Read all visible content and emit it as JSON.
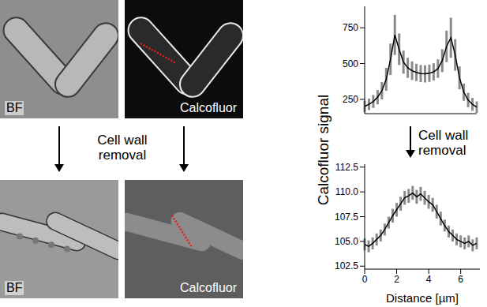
{
  "figure": {
    "panels": [
      {
        "label": "BF"
      },
      {
        "label": "Calcofluor"
      },
      {
        "label": "BF"
      },
      {
        "label": "Calcofluor"
      }
    ],
    "arrow_labels": [
      "Cell wall removal",
      "Cell wall removal"
    ],
    "y_label": "Calcofluor signal"
  },
  "chart_data": [
    {
      "type": "line",
      "x": [
        0,
        0.25,
        0.5,
        0.75,
        1.0,
        1.25,
        1.5,
        1.75,
        2.0,
        2.25,
        2.5,
        2.75,
        3.0,
        3.25,
        3.5,
        3.75,
        4.0,
        4.25,
        4.5,
        4.75,
        5.0,
        5.25,
        5.5,
        5.75,
        6.0,
        6.25,
        6.5
      ],
      "values": [
        200,
        215,
        235,
        265,
        310,
        390,
        530,
        700,
        600,
        510,
        470,
        450,
        438,
        430,
        428,
        432,
        442,
        465,
        520,
        620,
        680,
        560,
        400,
        300,
        245,
        215,
        195
      ],
      "error": [
        40,
        40,
        45,
        50,
        60,
        80,
        110,
        140,
        110,
        80,
        70,
        65,
        60,
        60,
        60,
        60,
        60,
        65,
        80,
        110,
        140,
        110,
        80,
        60,
        50,
        45,
        40
      ],
      "xlim": [
        0,
        6.5
      ],
      "xticks": [
        0,
        2,
        4,
        6
      ],
      "ylim": [
        150,
        900
      ],
      "yticks": [
        250,
        500,
        750
      ],
      "tick_labels": "y",
      "color": "#000000"
    },
    {
      "type": "line",
      "x": [
        0,
        0.25,
        0.5,
        0.75,
        1.0,
        1.25,
        1.5,
        1.75,
        2.0,
        2.25,
        2.5,
        2.75,
        3.0,
        3.25,
        3.5,
        3.75,
        4.0,
        4.25,
        4.5,
        4.75,
        5.0,
        5.25,
        5.5,
        5.75,
        6.0,
        6.25,
        6.5,
        6.75,
        7.0
      ],
      "values": [
        104.7,
        104.5,
        104.8,
        105.2,
        105.6,
        106.2,
        106.9,
        107.6,
        108.2,
        108.8,
        109.4,
        109.6,
        109.9,
        109.5,
        109.8,
        109.4,
        109.0,
        108.7,
        108.0,
        107.3,
        106.6,
        106.0,
        105.6,
        105.2,
        105.0,
        104.8,
        105.0,
        104.6,
        104.8
      ],
      "error": [
        0.6,
        0.6,
        0.6,
        0.6,
        0.6,
        0.6,
        0.6,
        0.7,
        0.7,
        0.7,
        0.7,
        0.7,
        0.7,
        0.7,
        0.7,
        0.7,
        0.7,
        0.7,
        0.7,
        0.7,
        0.6,
        0.6,
        0.6,
        0.6,
        0.6,
        0.6,
        0.6,
        0.6,
        0.6
      ],
      "xlim": [
        0,
        7.2
      ],
      "xticks": [
        0,
        2,
        4,
        6
      ],
      "ylim": [
        102.2,
        112.8
      ],
      "yticks": [
        102.5,
        {
          "value": 105,
          "label": "105.0"
        },
        {
          "value": 107.5,
          "label": "107.5"
        },
        {
          "value": 110,
          "label": "110.0"
        },
        112.5
      ],
      "x_label": "Distance [µm]",
      "color": "#000000"
    }
  ]
}
